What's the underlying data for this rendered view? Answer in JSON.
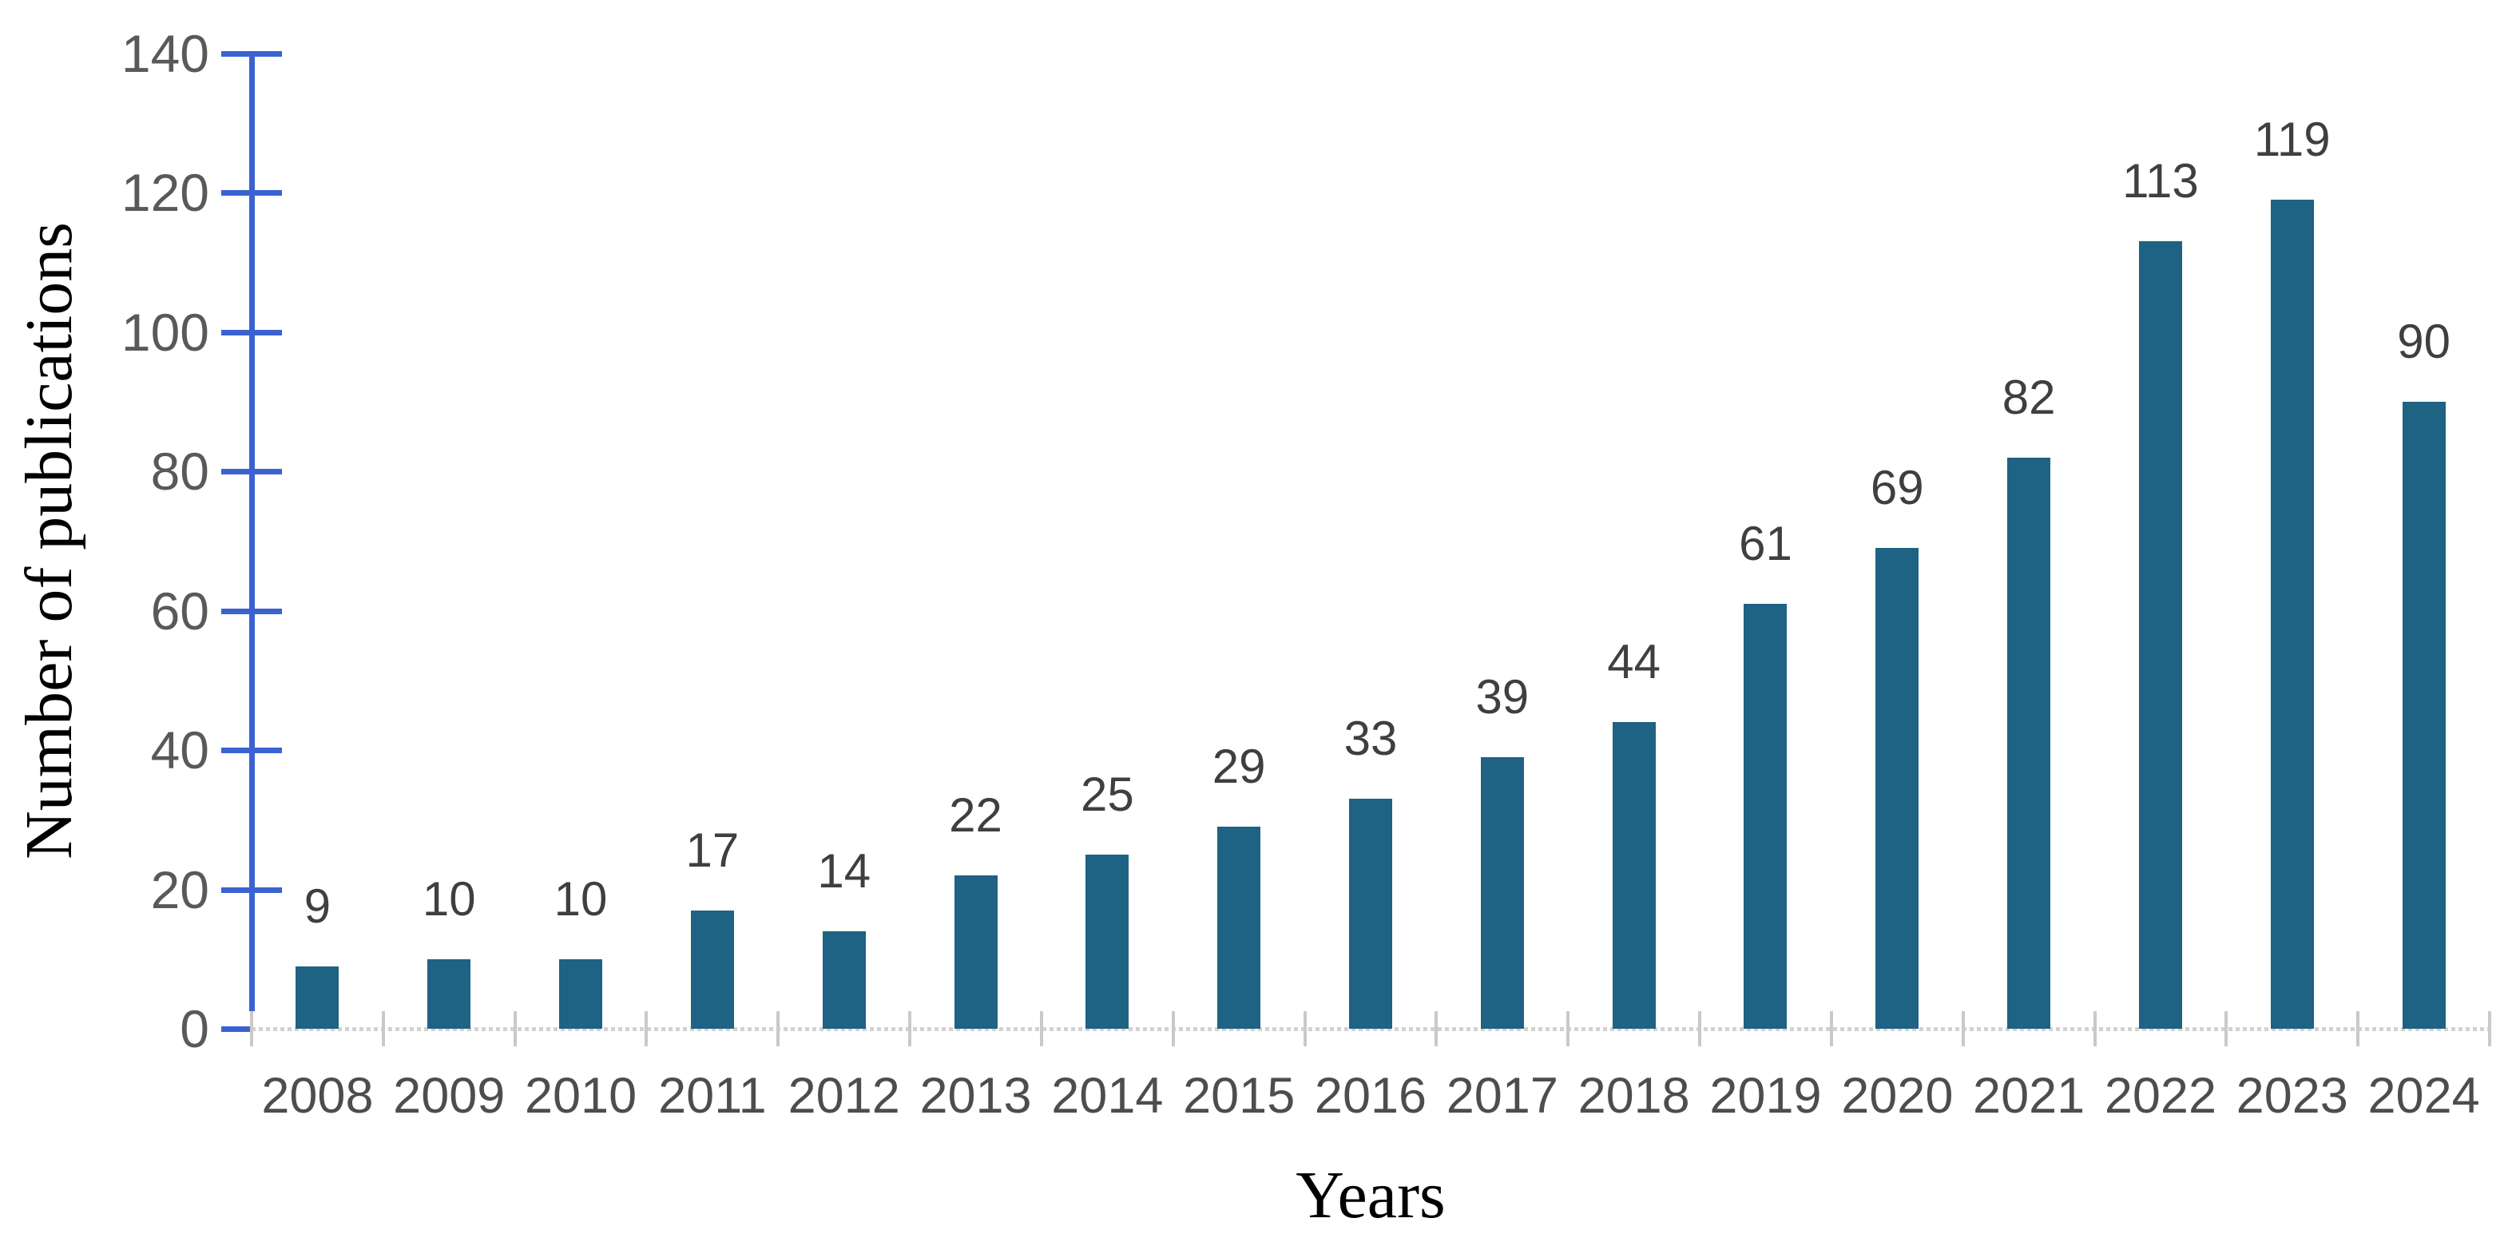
{
  "chart_data": {
    "type": "bar",
    "title": "",
    "categories": [
      "2008",
      "2009",
      "2010",
      "2011",
      "2012",
      "2013",
      "2014",
      "2015",
      "2016",
      "2017",
      "2018",
      "2019",
      "2020",
      "2021",
      "2022",
      "2023",
      "2024"
    ],
    "values": [
      9,
      10,
      10,
      17,
      14,
      22,
      25,
      29,
      33,
      39,
      44,
      61,
      69,
      82,
      113,
      119,
      90
    ],
    "xlabel": "Years",
    "ylabel": "Number of publications",
    "ylim": [
      0,
      140
    ],
    "yticks": [
      0,
      20,
      40,
      60,
      80,
      100,
      120,
      140
    ],
    "data_labels": true,
    "grid": false,
    "legend": false,
    "colors": {
      "bar": "#1E6284",
      "y_axis": "#3B62D1",
      "x_axis_line": "#D2D2D2",
      "x_boundary_tick": "#C9C9C9",
      "y_tick_label": "#595959",
      "x_tick_label": "#4D4D4D",
      "data_label": "#3F3F3F",
      "axis_title": "#000000"
    }
  }
}
